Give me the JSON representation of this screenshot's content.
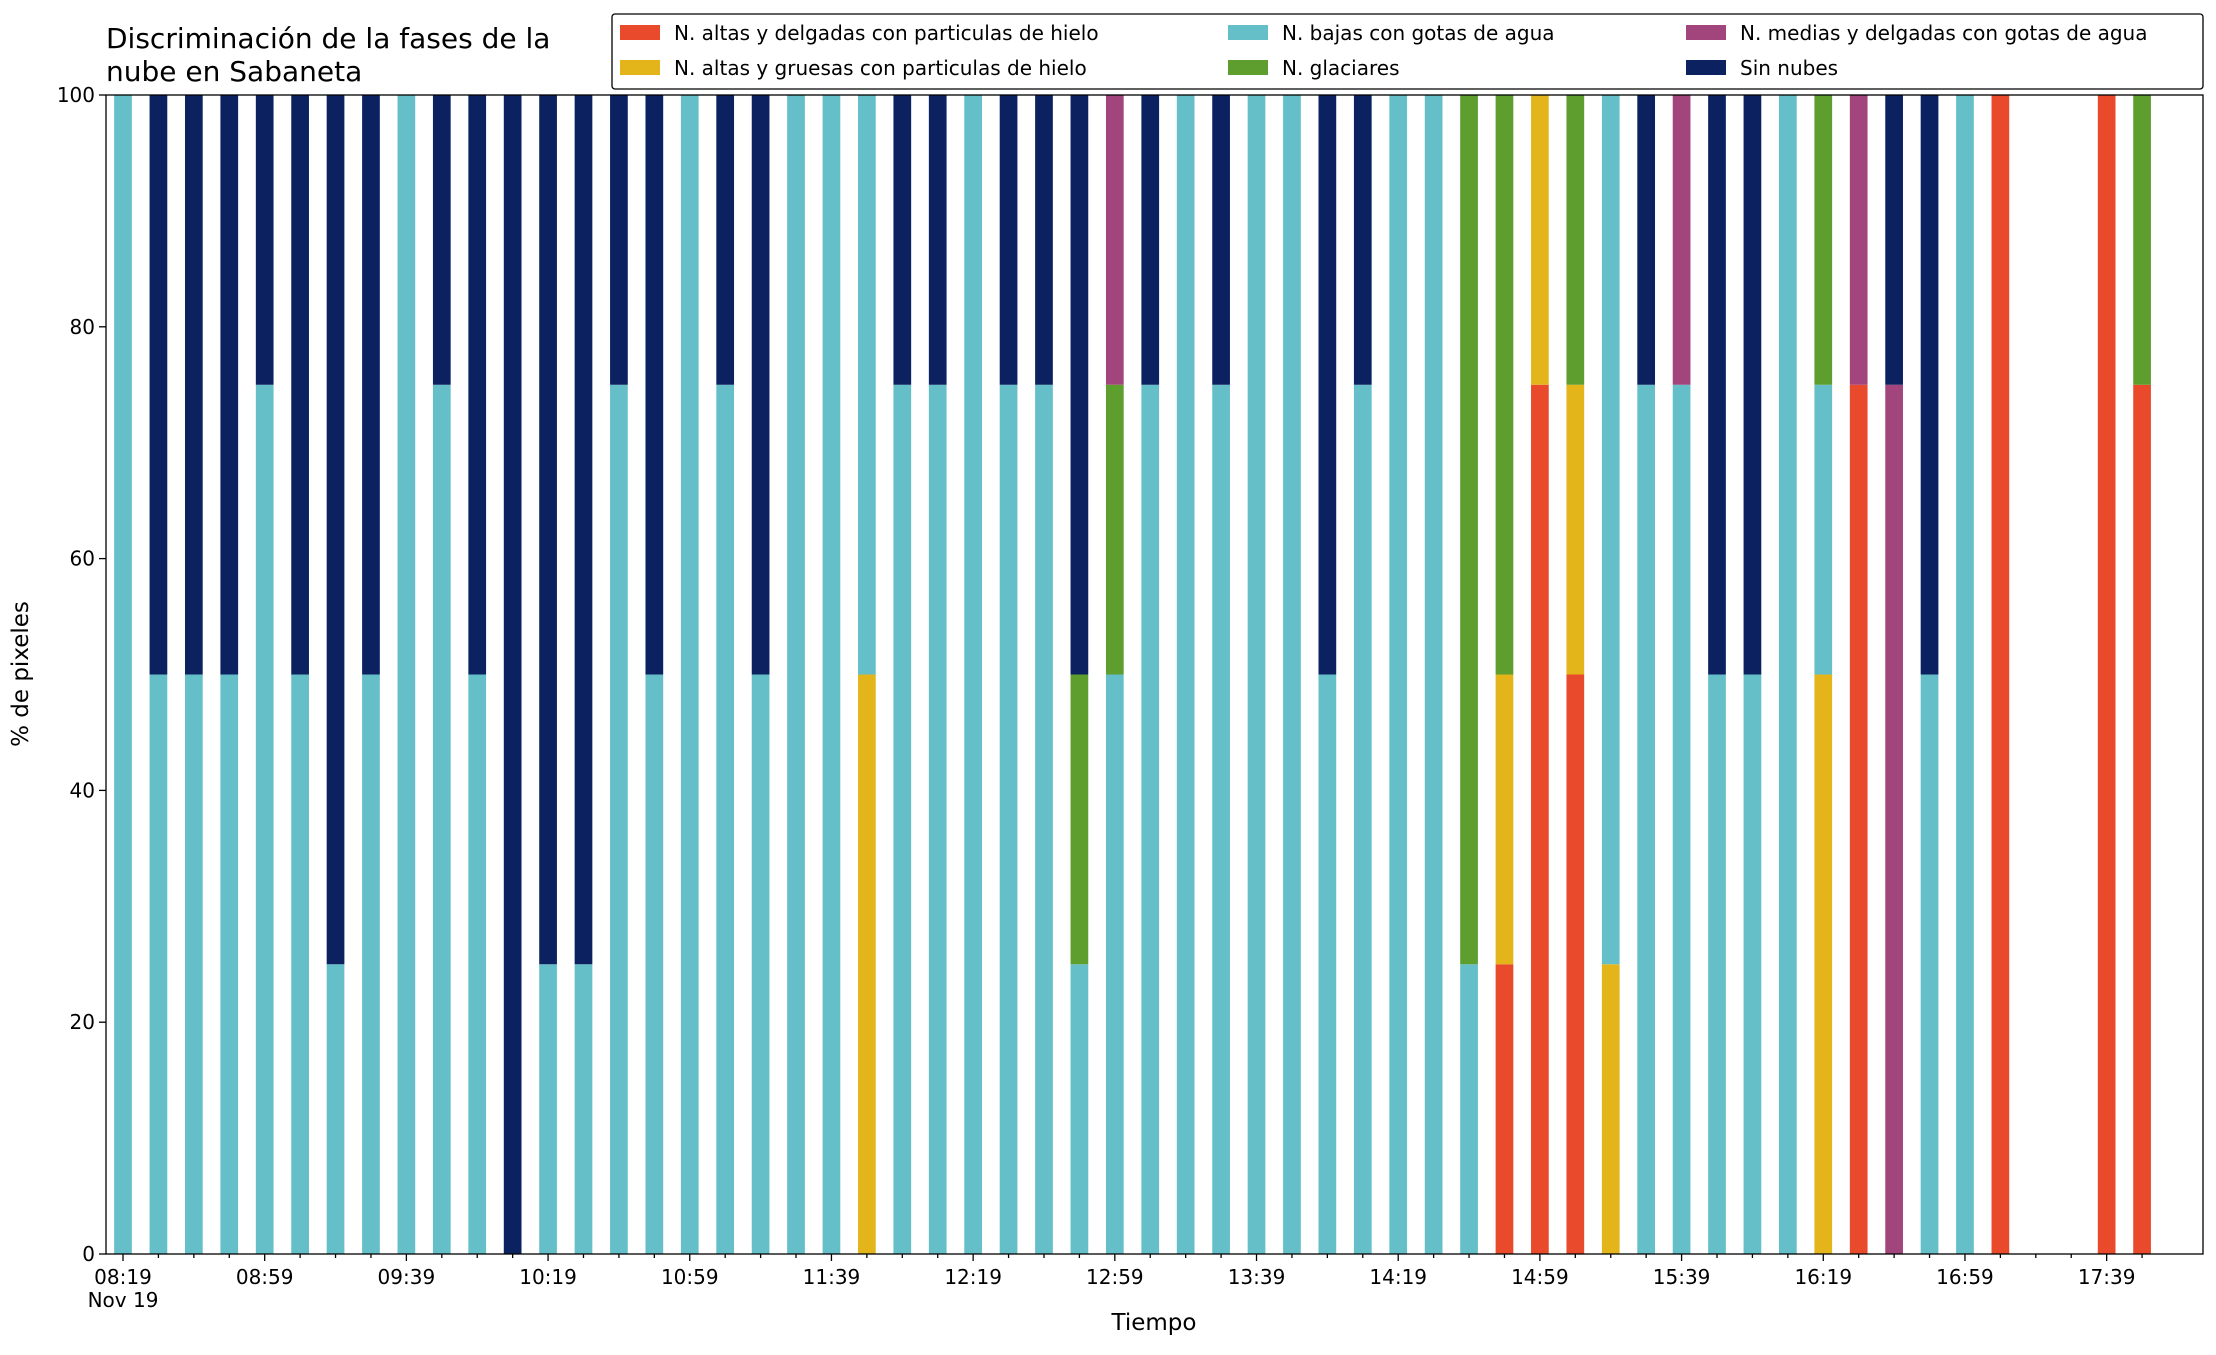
{
  "chart_data": {
    "type": "stacked_bar",
    "title": "Discriminación de la fases de la\nnube en Sabaneta",
    "x_label": "Tiempo",
    "y_label": "% de pixeles",
    "x_sublabel": "Nov 19",
    "categories": [
      "08:19",
      null,
      null,
      null,
      "08:59",
      null,
      null,
      null,
      "09:39",
      null,
      null,
      null,
      "10:19",
      null,
      null,
      null,
      "10:59",
      null,
      null,
      null,
      "11:39",
      null,
      null,
      null,
      "12:19",
      null,
      null,
      null,
      "12:59",
      null,
      null,
      null,
      "13:39",
      null,
      null,
      null,
      "14:19",
      null,
      null,
      null,
      "14:59",
      null,
      null,
      null,
      "15:39",
      null,
      null,
      null,
      "16:19",
      null,
      null,
      null,
      "16:59",
      null,
      null,
      null,
      "17:39",
      null
    ],
    "ylim": [
      0,
      100
    ],
    "yticks": [
      0,
      20,
      40,
      60,
      80,
      100
    ],
    "grid": false,
    "legend": "top-right",
    "series": [
      {
        "name": "N. altas y delgadas con particulas de hielo",
        "color": "#e84a2b",
        "values": [
          0,
          0,
          0,
          0,
          0,
          0,
          0,
          0,
          0,
          0,
          0,
          0,
          0,
          0,
          0,
          0,
          0,
          0,
          0,
          0,
          0,
          0,
          0,
          0,
          0,
          0,
          0,
          0,
          0,
          0,
          0,
          0,
          0,
          0,
          0,
          0,
          0,
          0,
          0,
          25,
          75,
          50,
          0,
          0,
          0,
          0,
          0,
          0,
          0,
          75,
          0,
          0,
          0,
          100,
          null,
          null,
          100,
          75
        ]
      },
      {
        "name": "N. altas y gruesas con particulas de hielo",
        "color": "#e3b51a",
        "values": [
          0,
          0,
          0,
          0,
          0,
          0,
          0,
          0,
          0,
          0,
          0,
          0,
          0,
          0,
          0,
          0,
          0,
          0,
          0,
          0,
          0,
          50,
          0,
          0,
          0,
          0,
          0,
          0,
          0,
          0,
          0,
          0,
          0,
          0,
          0,
          0,
          0,
          0,
          0,
          25,
          25,
          25,
          25,
          0,
          0,
          0,
          0,
          0,
          50,
          0,
          0,
          0,
          0,
          0,
          null,
          null,
          0,
          0
        ]
      },
      {
        "name": "N. bajas con gotas de agua",
        "color": "#65bfc9",
        "values": [
          100,
          50,
          50,
          50,
          75,
          50,
          25,
          50,
          100,
          75,
          50,
          0,
          25,
          25,
          75,
          50,
          100,
          75,
          50,
          100,
          100,
          50,
          75,
          75,
          100,
          75,
          75,
          25,
          50,
          75,
          100,
          75,
          100,
          100,
          50,
          75,
          100,
          100,
          25,
          0,
          0,
          0,
          75,
          75,
          75,
          50,
          50,
          100,
          25,
          0,
          0,
          50,
          100,
          0,
          null,
          null,
          0,
          0
        ]
      },
      {
        "name": "N. glaciares",
        "color": "#5d9e2e",
        "values": [
          0,
          0,
          0,
          0,
          0,
          0,
          0,
          0,
          0,
          0,
          0,
          0,
          0,
          0,
          0,
          0,
          0,
          0,
          0,
          0,
          0,
          0,
          0,
          0,
          0,
          0,
          0,
          25,
          25,
          0,
          0,
          0,
          0,
          0,
          0,
          0,
          0,
          0,
          75,
          50,
          0,
          25,
          0,
          0,
          0,
          0,
          0,
          0,
          25,
          0,
          0,
          0,
          0,
          0,
          null,
          null,
          0,
          25
        ]
      },
      {
        "name": "N. medias y delgadas con gotas de agua",
        "color": "#a1457c",
        "values": [
          0,
          0,
          0,
          0,
          0,
          0,
          0,
          0,
          0,
          0,
          0,
          0,
          0,
          0,
          0,
          0,
          0,
          0,
          0,
          0,
          0,
          0,
          0,
          0,
          0,
          0,
          0,
          0,
          25,
          0,
          0,
          0,
          0,
          0,
          0,
          0,
          0,
          0,
          0,
          0,
          0,
          0,
          0,
          0,
          25,
          0,
          0,
          0,
          0,
          25,
          75,
          0,
          0,
          0,
          null,
          null,
          0,
          0
        ]
      },
      {
        "name": "Sin nubes",
        "color": "#0b2160",
        "values": [
          0,
          50,
          50,
          50,
          25,
          50,
          75,
          50,
          0,
          25,
          50,
          100,
          75,
          75,
          25,
          50,
          0,
          25,
          50,
          0,
          0,
          0,
          25,
          25,
          0,
          25,
          25,
          50,
          0,
          25,
          0,
          25,
          0,
          0,
          50,
          25,
          0,
          0,
          0,
          0,
          0,
          0,
          0,
          25,
          0,
          50,
          50,
          0,
          0,
          0,
          25,
          50,
          0,
          0,
          null,
          null,
          0,
          0
        ]
      }
    ]
  }
}
